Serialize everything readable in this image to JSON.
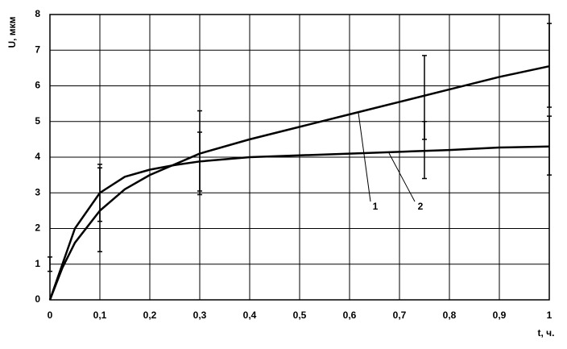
{
  "chart_data": {
    "type": "line",
    "y_label": "U, мкм",
    "x_label": "t, ч.",
    "x": [
      0,
      0.025,
      0.05,
      0.1,
      0.15,
      0.2,
      0.25,
      0.3,
      0.4,
      0.5,
      0.6,
      0.7,
      0.8,
      0.9,
      1.0
    ],
    "series": [
      {
        "name": "1",
        "color": "#000000",
        "values": [
          0,
          0.9,
          1.6,
          2.5,
          3.1,
          3.5,
          3.8,
          4.1,
          4.5,
          4.85,
          5.2,
          5.55,
          5.9,
          6.25,
          6.55
        ],
        "error_bars": [
          {
            "x": 0.1,
            "low": 1.35,
            "high": 3.8
          },
          {
            "x": 0.3,
            "low": 2.95,
            "high": 5.3
          },
          {
            "x": 0.75,
            "low": 3.4,
            "high": 6.85
          },
          {
            "x": 1,
            "low": 5.4,
            "high": 7.75
          }
        ]
      },
      {
        "name": "2",
        "color": "#000000",
        "values": [
          0,
          1.0,
          2.0,
          3.0,
          3.45,
          3.65,
          3.78,
          3.88,
          4.0,
          4.05,
          4.1,
          4.15,
          4.2,
          4.27,
          4.3
        ],
        "error_bars": [
          {
            "x": 0,
            "low": 0.8,
            "high": 1.2
          },
          {
            "x": 0.1,
            "low": 2.2,
            "high": 3.7
          },
          {
            "x": 0.3,
            "low": 3.05,
            "high": 4.7
          },
          {
            "x": 0.75,
            "low": 4.5,
            "high": 5.0
          },
          {
            "x": 1,
            "low": 3.5,
            "high": 5.15
          }
        ]
      }
    ],
    "xlim": [
      0,
      1
    ],
    "ylim": [
      0,
      8
    ],
    "xticks": [
      0,
      {
        "value": 0.1,
        "label": "0,1"
      },
      {
        "value": 0.2,
        "label": "0,2"
      },
      {
        "value": 0.3,
        "label": "0,3"
      },
      {
        "value": 0.4,
        "label": "0,4"
      },
      {
        "value": 0.5,
        "label": "0,5"
      },
      {
        "value": 0.6,
        "label": "0,6"
      },
      {
        "value": 0.7,
        "label": "0,7"
      },
      {
        "value": 0.8,
        "label": "0,8"
      },
      {
        "value": 0.9,
        "label": "0,9"
      },
      1
    ],
    "yticks": [
      0,
      1,
      2,
      3,
      4,
      5,
      6,
      7,
      8
    ],
    "grid": true
  }
}
